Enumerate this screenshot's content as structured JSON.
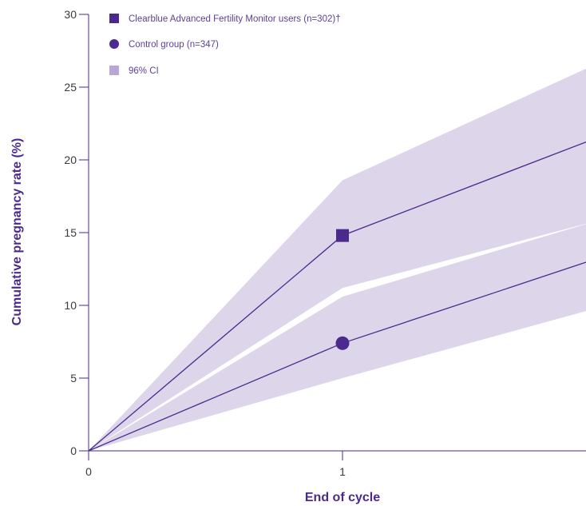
{
  "colors": {
    "series": "#4a2a8e",
    "ci_fill": "#ddd6ea",
    "ci_legend": "#b7a6d6",
    "axis": "#4a2a8e",
    "text": "#3a3a3a"
  },
  "chart_data": {
    "type": "line",
    "title": "",
    "xlabel": "End of cycle",
    "ylabel": "Cumulative pregnancy rate (%)",
    "x_ticks": [
      "0",
      "1"
    ],
    "y_ticks": [
      "0",
      "5",
      "10",
      "15",
      "20",
      "25",
      "30"
    ],
    "xlim": [
      0,
      2
    ],
    "ylim": [
      0,
      30
    ],
    "grid": false,
    "legend_position": "top-left",
    "legend": [
      {
        "label": "Clearblue Advanced Fertility Monitor users (n=302)†",
        "marker": "square"
      },
      {
        "label": "Control group (n=347)",
        "marker": "circle"
      },
      {
        "label": "96% CI",
        "marker": "shaded-square"
      }
    ],
    "series": [
      {
        "name": "Clearblue Advanced Fertility Monitor users (n=302)†",
        "marker": "square",
        "x": [
          0,
          1,
          2
        ],
        "y": [
          0,
          14.8,
          21.5
        ],
        "ci_lower": [
          0,
          11.2,
          15.8
        ],
        "ci_upper": [
          0,
          18.6,
          26.6
        ]
      },
      {
        "name": "Control group (n=347)",
        "marker": "circle",
        "x": [
          0,
          1,
          2
        ],
        "y": [
          0,
          7.4,
          13.2
        ],
        "ci_lower": [
          0,
          5.0,
          9.8
        ],
        "ci_upper": [
          0,
          10.6,
          15.8
        ]
      }
    ],
    "marked_points_x": [
      1
    ]
  }
}
